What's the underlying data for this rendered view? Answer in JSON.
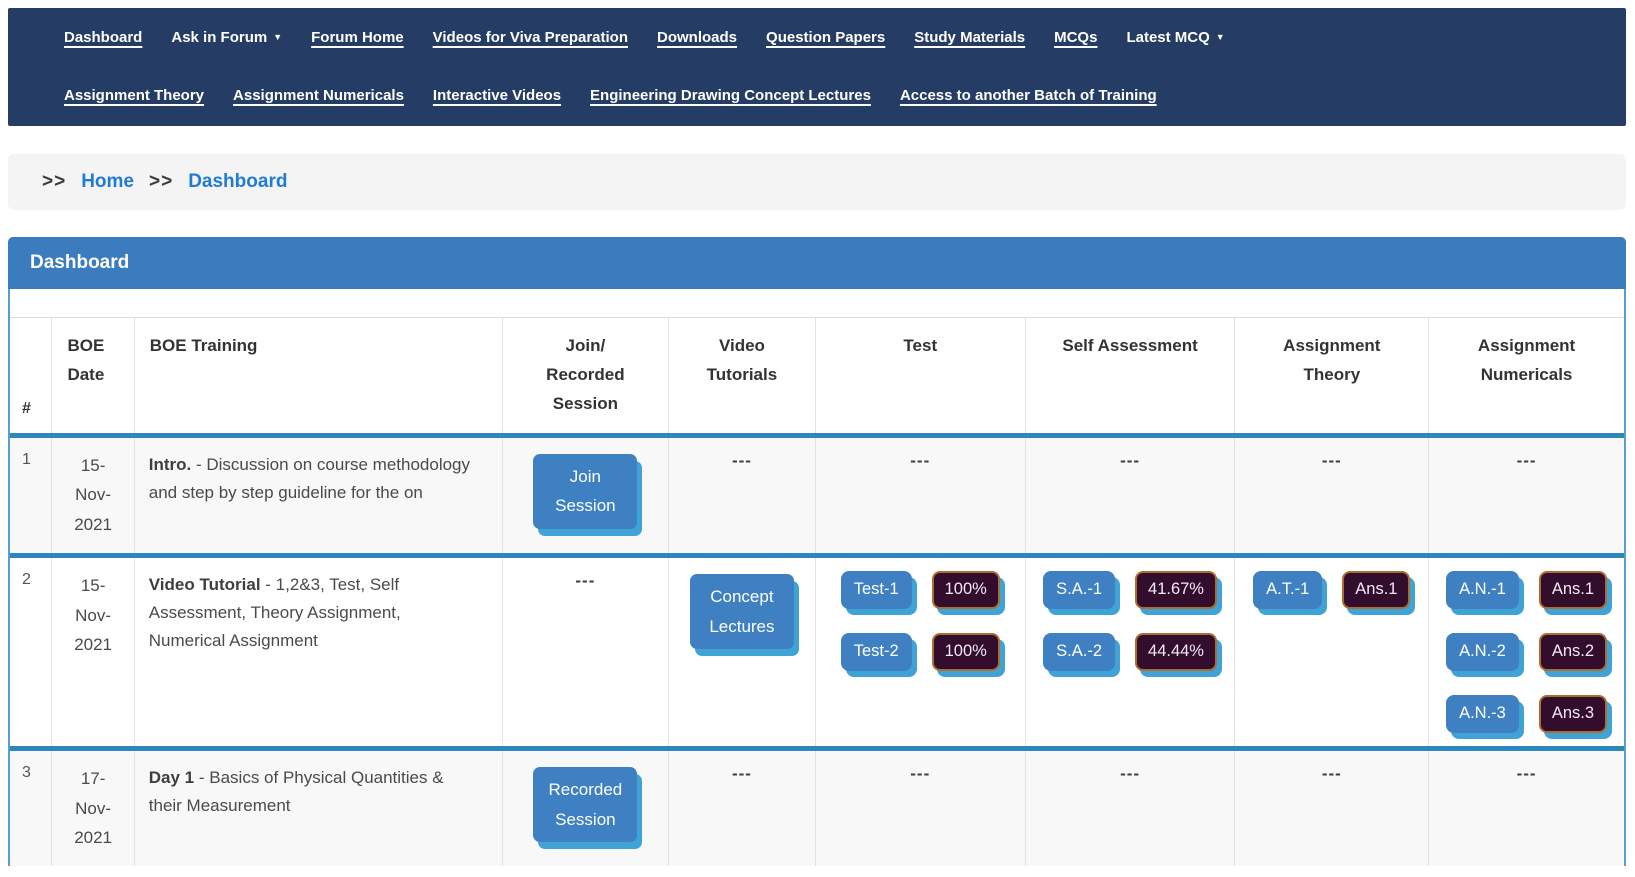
{
  "colors": {
    "navbar_bg": "#253C64",
    "panel_header_bg": "#3A7CBE",
    "panel_border": "#5D9BCB",
    "row_divider": "#2D86BD",
    "button_blue": "#3E80C2",
    "button_shadow": "#3FA3D6",
    "dark_button_bg": "#330D2E",
    "dark_button_border": "#AD6D2E",
    "dark_button_text": "#F2E9F2",
    "link_blue": "#1F7BD6",
    "breadcrumb_bg": "#F4F4F4"
  },
  "icons": {
    "chevron_down": "▼"
  },
  "navbar": {
    "row1": [
      {
        "label": "Dashboard",
        "dropdown": false
      },
      {
        "label": "Ask in Forum",
        "dropdown": true
      },
      {
        "label": "Forum Home",
        "dropdown": false
      },
      {
        "label": "Videos for Viva Preparation",
        "dropdown": false
      },
      {
        "label": "Downloads",
        "dropdown": false
      },
      {
        "label": "Question Papers",
        "dropdown": false
      },
      {
        "label": "Study Materials",
        "dropdown": false
      },
      {
        "label": "MCQs",
        "dropdown": false
      },
      {
        "label": "Latest MCQ",
        "dropdown": true
      }
    ],
    "row2": [
      {
        "label": "Assignment Theory",
        "dropdown": false
      },
      {
        "label": "Assignment Numericals",
        "dropdown": false
      },
      {
        "label": "Interactive Videos",
        "dropdown": false
      },
      {
        "label": "Engineering Drawing Concept Lectures",
        "dropdown": false
      },
      {
        "label": "Access to another Batch of Training",
        "dropdown": false
      }
    ]
  },
  "breadcrumb": {
    "separator": ">>",
    "items": [
      "Home",
      "Dashboard"
    ]
  },
  "panel": {
    "title": "Dashboard"
  },
  "table": {
    "empty": "---",
    "headers": [
      "#",
      "BOE\nDate",
      "BOE Training",
      "Join/\nRecorded\nSession",
      "Video\nTutorials",
      "Test",
      "Self Assessment",
      "Assignment\nTheory",
      "Assignment\nNumericals"
    ],
    "rows": [
      {
        "num": "1",
        "date": "15-Nov-2021",
        "training": {
          "lead": "Intro.",
          "rest": " - Discussion on course methodology and step by step guideline for the on"
        },
        "session": {
          "kind": "button",
          "label": "Join Session"
        },
        "video_tutorials": {
          "kind": "empty"
        },
        "test": {
          "kind": "empty"
        },
        "self_assessment": {
          "kind": "empty"
        },
        "assignment_theory": {
          "kind": "empty"
        },
        "assignment_numericals": {
          "kind": "empty"
        }
      },
      {
        "num": "2",
        "date": "15-Nov-2021",
        "training": {
          "lead": "Video Tutorial",
          "rest": " - 1,2&3, Test, Self Assessment, Theory Assignment, Numerical Assignment"
        },
        "session": {
          "kind": "empty"
        },
        "video_tutorials": {
          "kind": "button",
          "label": "Concept Lectures"
        },
        "test": {
          "kind": "pairs",
          "pairs": [
            {
              "action": "Test-1",
              "result": "100%"
            },
            {
              "action": "Test-2",
              "result": "100%"
            }
          ]
        },
        "self_assessment": {
          "kind": "pairs",
          "pairs": [
            {
              "action": "S.A.-1",
              "result": "41.67%"
            },
            {
              "action": "S.A.-2",
              "result": "44.44%"
            }
          ]
        },
        "assignment_theory": {
          "kind": "pairs",
          "pairs": [
            {
              "action": "A.T.-1",
              "result": "Ans.1"
            }
          ]
        },
        "assignment_numericals": {
          "kind": "pairs",
          "pairs": [
            {
              "action": "A.N.-1",
              "result": "Ans.1"
            },
            {
              "action": "A.N.-2",
              "result": "Ans.2"
            },
            {
              "action": "A.N.-3",
              "result": "Ans.3"
            }
          ]
        }
      },
      {
        "num": "3",
        "date": "17-Nov-2021",
        "training": {
          "lead": "Day 1",
          "rest": " - Basics of Physical Quantities & their Measurement"
        },
        "session": {
          "kind": "button",
          "label": "Recorded Session"
        },
        "video_tutorials": {
          "kind": "empty"
        },
        "test": {
          "kind": "empty"
        },
        "self_assessment": {
          "kind": "empty"
        },
        "assignment_theory": {
          "kind": "empty"
        },
        "assignment_numericals": {
          "kind": "empty"
        }
      }
    ]
  }
}
